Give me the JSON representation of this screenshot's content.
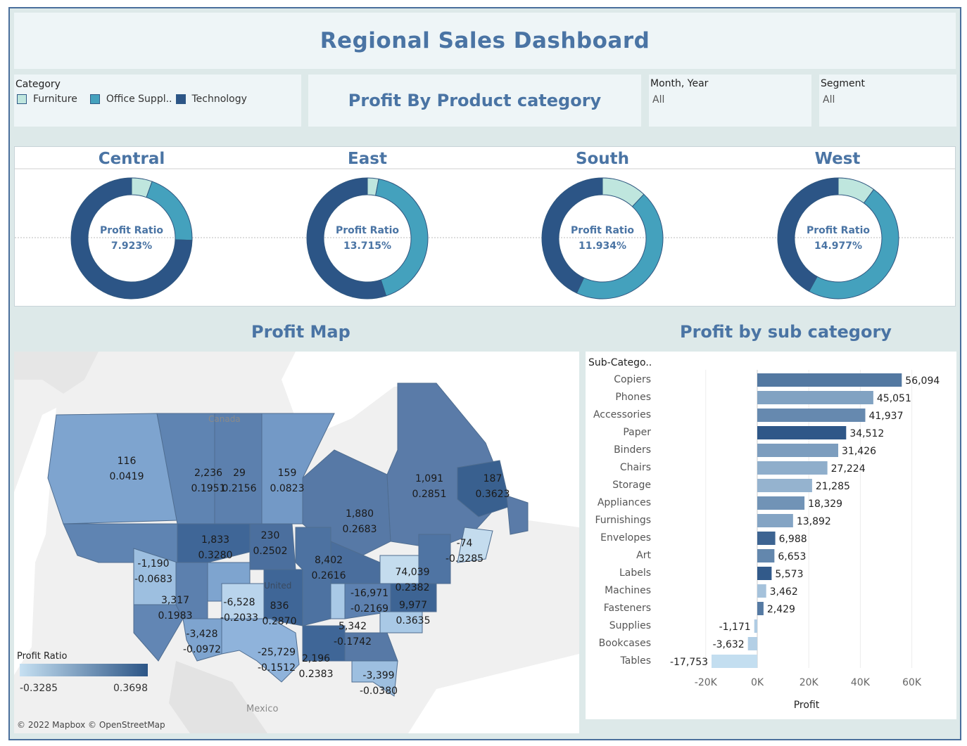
{
  "dashboard": {
    "title": "Regional Sales  Dashboard"
  },
  "category_legend": {
    "label": "Category",
    "items": [
      {
        "label": "Furniture",
        "color": "#bfe6de"
      },
      {
        "label": "Office Suppl..",
        "color": "#44a1bd"
      },
      {
        "label": "Technology",
        "color": "#2c5586"
      }
    ]
  },
  "profit_heading": "Profit By Product category",
  "filters": {
    "month_year": {
      "label": "Month, Year",
      "value": "All"
    },
    "segment": {
      "label": "Segment",
      "value": "All"
    }
  },
  "colors": {
    "accent": "#4a74a4",
    "frame": "#4a6f9c",
    "background": "#dde9e9"
  },
  "regions": [
    {
      "name": "Central",
      "ratio_label": "Profit Ratio",
      "ratio": "7.923%",
      "shares": {
        "Furniture": 0.055,
        "Office Supplies": 0.2,
        "Technology": 0.745
      }
    },
    {
      "name": "East",
      "ratio_label": "Profit Ratio",
      "ratio": "13.715%",
      "shares": {
        "Furniture": 0.03,
        "Office Supplies": 0.42,
        "Technology": 0.55
      }
    },
    {
      "name": "South",
      "ratio_label": "Profit Ratio",
      "ratio": "11.934%",
      "shares": {
        "Furniture": 0.12,
        "Office Supplies": 0.45,
        "Technology": 0.43
      }
    },
    {
      "name": "West",
      "ratio_label": "Profit Ratio",
      "ratio": "14.977%",
      "shares": {
        "Furniture": 0.1,
        "Office Supplies": 0.48,
        "Technology": 0.42
      }
    }
  ],
  "profit_map": {
    "title": "Profit Map",
    "country_labels": [
      "Canada",
      "United",
      "Mexico"
    ],
    "labels": [
      {
        "v": "116",
        "r": "0.0419"
      },
      {
        "v": "2,236",
        "r": "0.1951"
      },
      {
        "v": "29",
        "r": "0.2156"
      },
      {
        "v": "159",
        "r": "0.0823"
      },
      {
        "v": "1,880",
        "r": "0.2683"
      },
      {
        "v": "1,091",
        "r": "0.2851"
      },
      {
        "v": "187",
        "r": "0.3623"
      },
      {
        "v": "1,833",
        "r": "0.3280"
      },
      {
        "v": "230",
        "r": "0.2502"
      },
      {
        "v": "-74",
        "r": "-0.3285"
      },
      {
        "v": "-1,190",
        "r": "-0.0683"
      },
      {
        "v": "8,402",
        "r": "0.2616"
      },
      {
        "v": "74,039",
        "r": "0.2382"
      },
      {
        "v": "3,317",
        "r": "0.1983"
      },
      {
        "v": "-6,528",
        "r": "-0.2033"
      },
      {
        "v": "836",
        "r": "0.2870"
      },
      {
        "v": "-16,971",
        "r": "-0.2169"
      },
      {
        "v": "9,977",
        "r": "0.3635"
      },
      {
        "v": "-3,428",
        "r": "-0.0972"
      },
      {
        "v": "5,342",
        "r": "-0.1742"
      },
      {
        "v": "-25,729",
        "r": "-0.1512"
      },
      {
        "v": "2,196",
        "r": "0.2383"
      },
      {
        "v": "-3,399",
        "r": "-0.0380"
      }
    ],
    "legend": {
      "title": "Profit Ratio",
      "min": "-0.3285",
      "max": "0.3698"
    },
    "attribution": "© 2022 Mapbox © OpenStreetMap"
  },
  "chart_data": {
    "type": "bar",
    "title": "Profit by sub category",
    "category_header": "Sub-Catego..",
    "xlabel": "Profit",
    "xlim": [
      -25000,
      70000
    ],
    "xticks": [
      "-20K",
      "0K",
      "20K",
      "40K",
      "60K"
    ],
    "xtick_values": [
      -20000,
      0,
      20000,
      40000,
      60000
    ],
    "orientation": "horizontal",
    "categories": [
      "Copiers",
      "Phones",
      "Accessories",
      "Paper",
      "Binders",
      "Chairs",
      "Storage",
      "Appliances",
      "Furnishings",
      "Envelopes",
      "Art",
      "Labels",
      "Machines",
      "Fasteners",
      "Supplies",
      "Bookcases",
      "Tables"
    ],
    "values": [
      56094,
      45051,
      41937,
      34512,
      31426,
      27224,
      21285,
      18329,
      13892,
      6988,
      6653,
      5573,
      3462,
      2429,
      -1171,
      -3632,
      -17753
    ],
    "value_labels": [
      "56,094",
      "45,051",
      "41,937",
      "34,512",
      "31,426",
      "27,224",
      "21,285",
      "18,329",
      "13,892",
      "6,988",
      "6,653",
      "5,573",
      "3,462",
      "2,429",
      "-1,171",
      "-3,632",
      "-17,753"
    ],
    "ratios": [
      0.32,
      0.15,
      0.25,
      0.45,
      0.17,
      0.1,
      0.08,
      0.21,
      0.14,
      0.4,
      0.26,
      0.44,
      0.02,
      0.31,
      -0.02,
      -0.03,
      -0.09
    ]
  }
}
